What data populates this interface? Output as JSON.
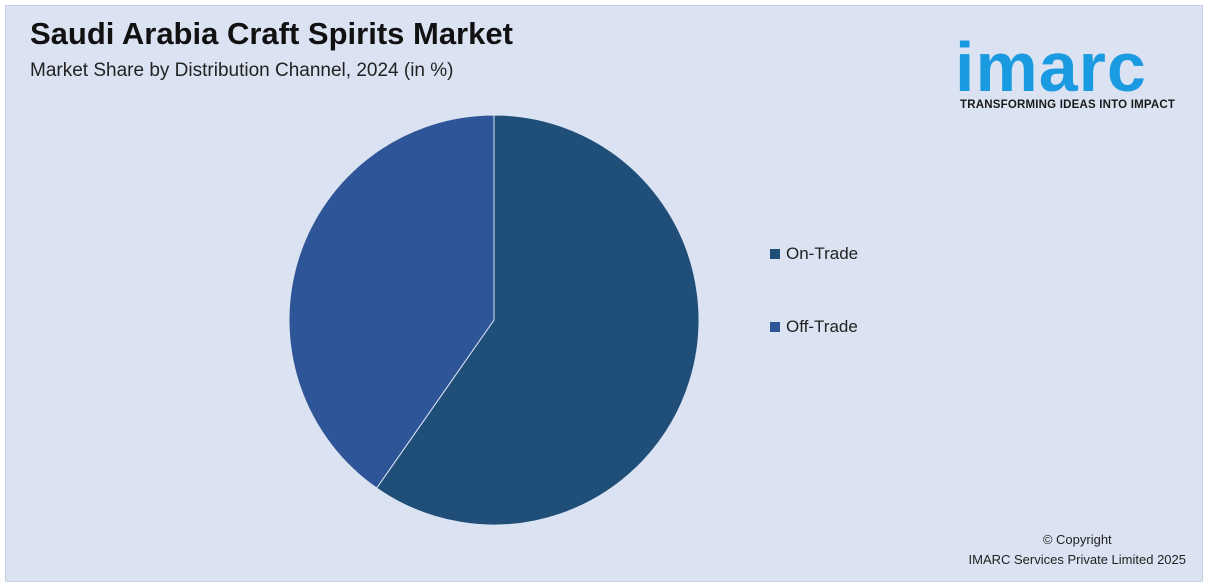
{
  "header": {
    "title": "Saudi Arabia Craft Spirits Market",
    "subtitle": "Market Share by Distribution Channel, 2024 (in %)"
  },
  "logo": {
    "wordmark": "imarc",
    "tagline": "TRANSFORMING IDEAS INTO IMPACT",
    "color": "#1a9ae0"
  },
  "chart_data": {
    "type": "pie",
    "title": "Saudi Arabia Craft Spirits Market",
    "subtitle": "Market Share by Distribution Channel, 2024 (in %)",
    "categories": [
      "On-Trade",
      "Off-Trade"
    ],
    "values": [
      59.7,
      40.3
    ],
    "colors": [
      "#1f4e79",
      "#2e5597"
    ],
    "legend_position": "right",
    "data_labels": false
  },
  "footer": {
    "copyright_line1": "© Copyright",
    "copyright_line2": "IMARC Services Private Limited 2025"
  }
}
